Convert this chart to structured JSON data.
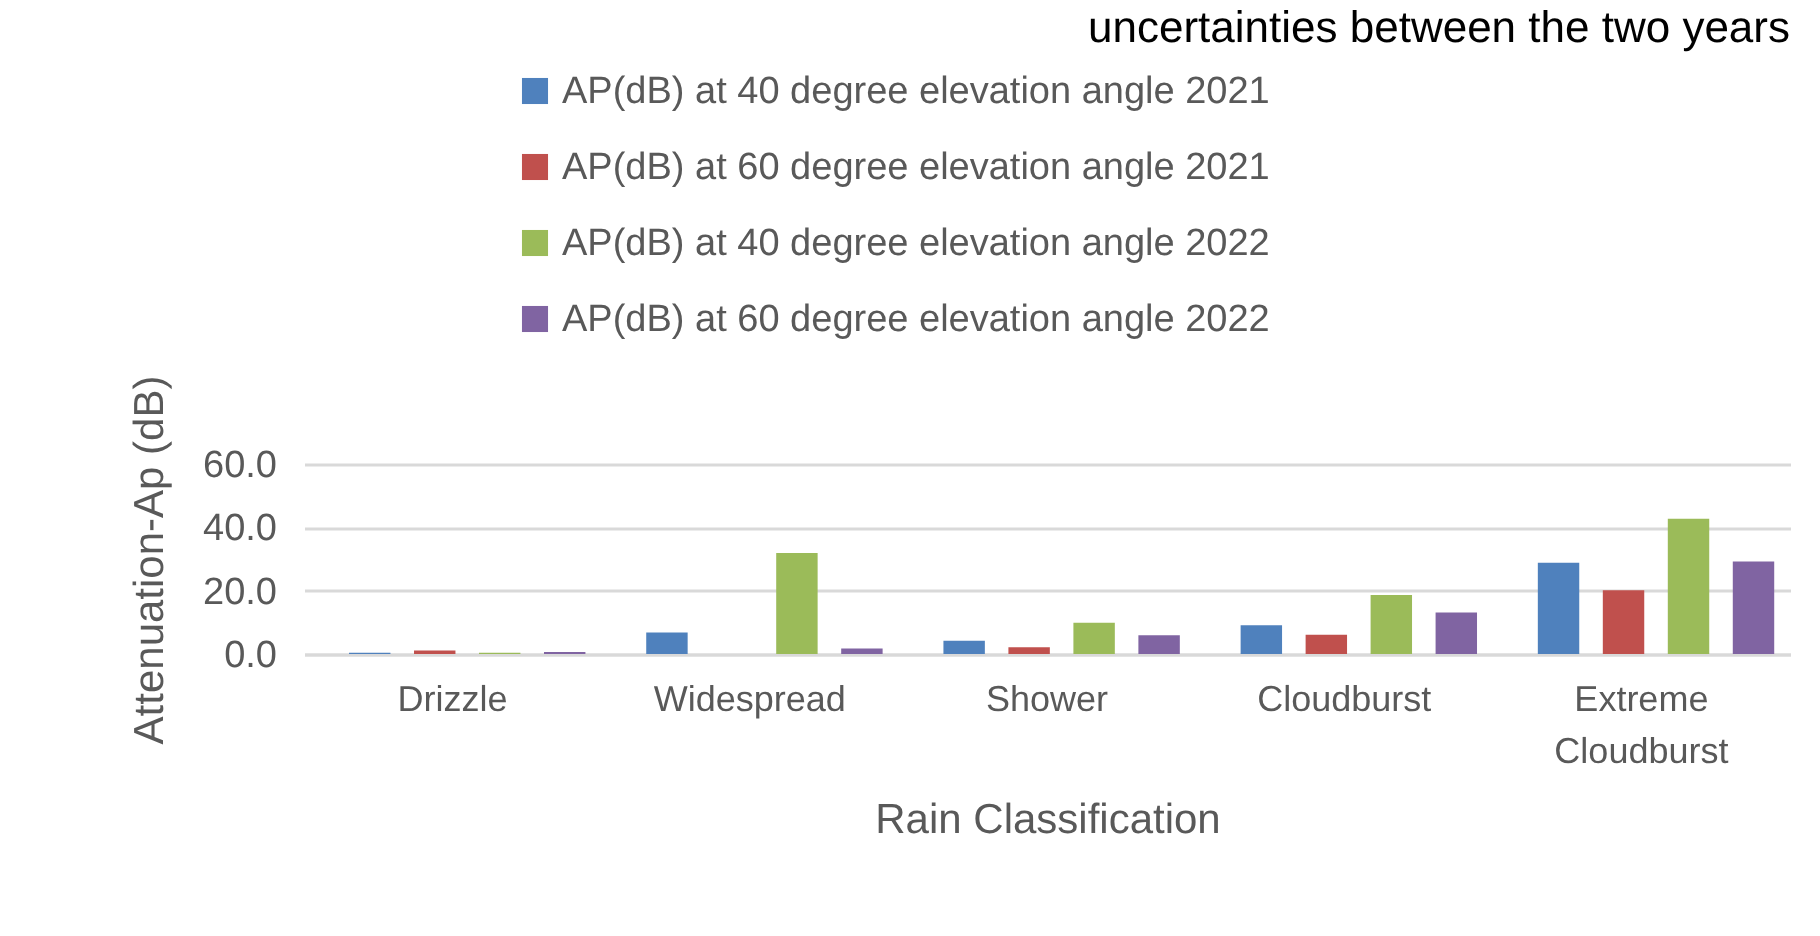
{
  "chart_data": {
    "type": "bar",
    "title": "uncertainties between the two years",
    "xlabel": "Rain Classification",
    "ylabel": "Attenuation-Ap (dB)",
    "categories": [
      "Drizzle",
      "Widespread",
      "Shower",
      "Cloudburst",
      "Extreme Cloudburst"
    ],
    "series": [
      {
        "name": "AP(dB) at 40 degree elevation angle 2021",
        "color": "#4f81bd",
        "values": [
          0.4,
          6.8,
          4.2,
          9.1,
          28.8
        ]
      },
      {
        "name": "AP(dB) at 60 degree elevation angle 2021",
        "color": "#c0504d",
        "values": [
          1.1,
          0,
          2.1,
          6.1,
          20.1
        ]
      },
      {
        "name": "AP(dB) at 40 degree elevation angle 2022",
        "color": "#9bbb59",
        "values": [
          0.4,
          31.9,
          9.9,
          18.6,
          42.7
        ]
      },
      {
        "name": "AP(dB) at 60 degree elevation angle 2022",
        "color": "#8064a2",
        "values": [
          0.6,
          1.7,
          5.9,
          13.1,
          29.2
        ]
      }
    ],
    "ylim": [
      0,
      60
    ],
    "yticks": [
      {
        "value": 0,
        "label": "0.0"
      },
      {
        "value": 20,
        "label": "20.0"
      },
      {
        "value": 40,
        "label": "40.0"
      },
      {
        "value": 60,
        "label": "60.0"
      }
    ],
    "grid": "y",
    "legend": "top"
  }
}
